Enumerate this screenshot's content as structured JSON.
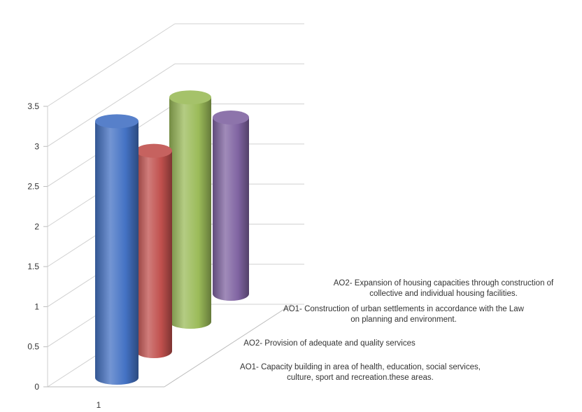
{
  "chart_data": {
    "type": "bar",
    "style": "3d-cylinder",
    "categories": [
      "1"
    ],
    "y_ticks": [
      "0",
      "0.5",
      "1",
      "1.5",
      "2",
      "2.5",
      "3",
      "3.5"
    ],
    "ylim": [
      0,
      3.5
    ],
    "grid": true,
    "series": [
      {
        "name": "AO1- Capacity building in  area of health, education, social services, culture, sport and recreation.these areas.",
        "label_lines": [
          "AO1- Capacity building in  area of health, education, social services,",
          "culture, sport and recreation.these areas."
        ],
        "values": [
          3.2
        ],
        "color": "#4472C4"
      },
      {
        "name": "AO2- Provision of adequate and quality services",
        "label_lines": [
          "AO2- Provision of adequate and quality services"
        ],
        "values": [
          2.5
        ],
        "color": "#C0504D"
      },
      {
        "name": "AO1- Construction of urban settlements in accordance with the Law on planning and environment.",
        "label_lines": [
          "AO1- Construction of urban settlements in accordance with the Law",
          "on planning and environment."
        ],
        "values": [
          2.8
        ],
        "color": "#9BBB59"
      },
      {
        "name": "AO2- Expansion of housing capacities through construction of collective and individual housing facilities.",
        "label_lines": [
          "AO2- Expansion of housing capacities through construction of",
          "collective and individual housing facilities."
        ],
        "values": [
          2.2
        ],
        "color": "#8064A2"
      }
    ]
  }
}
